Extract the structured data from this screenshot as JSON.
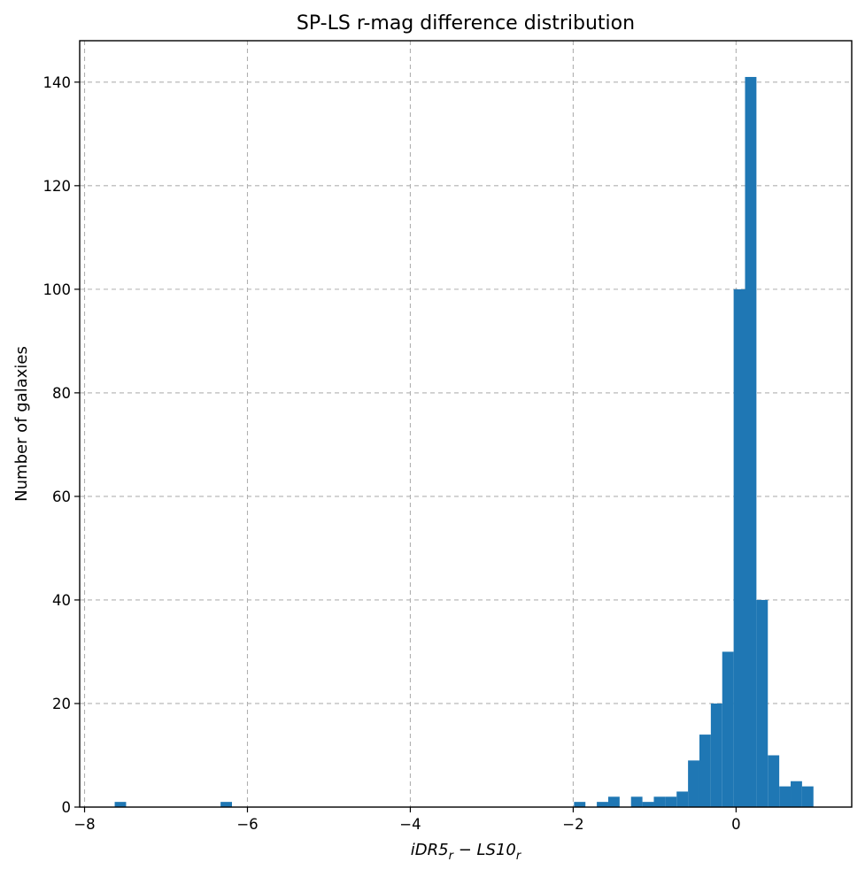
{
  "chart_data": {
    "type": "bar",
    "title": "SP-LS r-mag difference distribution",
    "xlabel": "iDR5",
    "xlabel_sub1": "r",
    "xlabel_mid": " − LS10",
    "xlabel_sub2": "r",
    "ylabel": "Number of galaxies",
    "xlim": [
      -8.06,
      1.42
    ],
    "ylim": [
      0,
      148
    ],
    "xticks": [
      -8,
      -6,
      -4,
      -2,
      0
    ],
    "xtick_labels": [
      "−8",
      "−6",
      "−4",
      "−2",
      "0"
    ],
    "yticks": [
      0,
      20,
      40,
      60,
      80,
      100,
      120,
      140
    ],
    "ytick_labels": [
      "0",
      "20",
      "40",
      "60",
      "80",
      "100",
      "120",
      "140"
    ],
    "grid": true,
    "bin_width": 0.14,
    "bin_left_edges": [
      -7.63,
      -6.33,
      -1.99,
      -1.71,
      -1.57,
      -1.29,
      -1.15,
      -1.01,
      -0.87,
      -0.73,
      -0.59,
      -0.45,
      -0.31,
      -0.17,
      -0.03,
      0.11,
      0.25,
      0.39,
      0.53,
      0.67,
      0.81
    ],
    "counts": [
      1,
      1,
      1,
      1,
      2,
      2,
      1,
      2,
      2,
      3,
      9,
      14,
      20,
      30,
      100,
      141,
      40,
      10,
      4,
      5,
      4
    ],
    "color": "#1f77b4"
  }
}
